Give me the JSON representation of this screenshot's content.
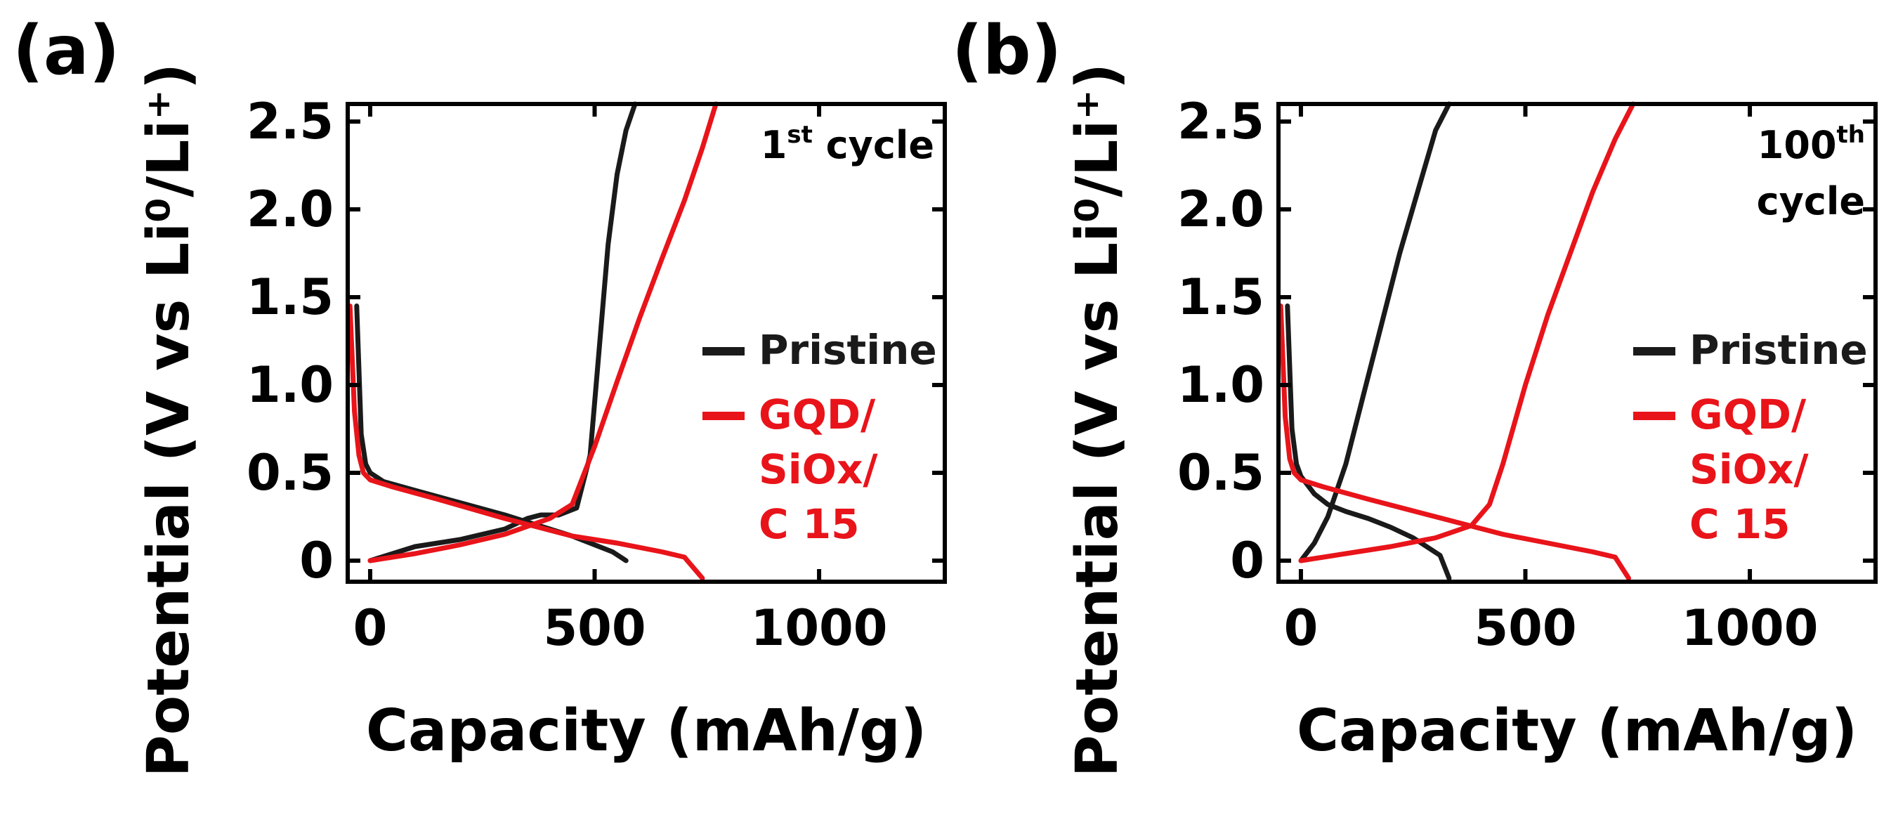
{
  "chart_data": [
    {
      "type": "line",
      "panel_label": "(a)",
      "annotation": {
        "text": "1",
        "superscript": "st",
        "suffix": " cycle"
      },
      "xlabel": "Capacity (mAh/g)",
      "ylabel": "Potential (V vs Li⁰/Li⁺)",
      "xlim": [
        -50,
        1280
      ],
      "ylim": [
        -0.12,
        2.6
      ],
      "xticks": [
        0,
        500,
        1000
      ],
      "xtick_labels": [
        "0",
        "500",
        "1000"
      ],
      "yticks": [
        0,
        0.5,
        1.0,
        1.5,
        2.0,
        2.5
      ],
      "ytick_labels": [
        "0",
        "0.5",
        "1.0",
        "1.5",
        "2.0",
        "2.5"
      ],
      "grid": false,
      "legend": {
        "position": "center-right",
        "entries": [
          {
            "label": "Pristine",
            "color": "#1a1a1a"
          },
          {
            "label": "GQD/\nSiOx/\nC 15",
            "color": "#e8141a"
          }
        ]
      },
      "series": [
        {
          "name": "Pristine discharge",
          "color": "#1a1a1a",
          "x": [
            -30,
            -20,
            -10,
            0,
            30,
            100,
            200,
            300,
            400,
            450,
            500,
            540,
            570
          ],
          "y": [
            1.45,
            0.72,
            0.55,
            0.5,
            0.45,
            0.4,
            0.33,
            0.26,
            0.18,
            0.14,
            0.09,
            0.05,
            0.0
          ]
        },
        {
          "name": "Pristine charge",
          "color": "#1a1a1a",
          "x": [
            0,
            100,
            200,
            300,
            350,
            380,
            420,
            460,
            490,
            510,
            530,
            550,
            570,
            590
          ],
          "y": [
            0.0,
            0.08,
            0.12,
            0.18,
            0.24,
            0.26,
            0.26,
            0.3,
            0.6,
            1.2,
            1.8,
            2.2,
            2.45,
            2.6
          ]
        },
        {
          "name": "GQD/SiOx/C 15 discharge",
          "color": "#e8141a",
          "x": [
            -45,
            -35,
            -25,
            -15,
            0,
            50,
            150,
            300,
            450,
            550,
            650,
            700,
            740
          ],
          "y": [
            1.45,
            0.85,
            0.6,
            0.5,
            0.46,
            0.42,
            0.35,
            0.24,
            0.14,
            0.1,
            0.05,
            0.02,
            -0.1
          ]
        },
        {
          "name": "GQD/SiOx/C 15 charge",
          "color": "#e8141a",
          "x": [
            0,
            100,
            200,
            300,
            400,
            450,
            500,
            550,
            600,
            650,
            700,
            740,
            770
          ],
          "y": [
            0.0,
            0.04,
            0.09,
            0.15,
            0.24,
            0.32,
            0.65,
            1.02,
            1.38,
            1.72,
            2.05,
            2.35,
            2.6
          ]
        }
      ]
    },
    {
      "type": "line",
      "panel_label": "(b)",
      "annotation": {
        "text": "100",
        "superscript": "th",
        "line2": "cycle"
      },
      "xlabel": "Capacity (mAh/g)",
      "ylabel": "Potential (V vs Li⁰/Li⁺)",
      "xlim": [
        -50,
        1280
      ],
      "ylim": [
        -0.12,
        2.6
      ],
      "xticks": [
        0,
        500,
        1000
      ],
      "xtick_labels": [
        "0",
        "500",
        "1000"
      ],
      "yticks": [
        0,
        0.5,
        1.0,
        1.5,
        2.0,
        2.5
      ],
      "ytick_labels": [
        "0",
        "0.5",
        "1.0",
        "1.5",
        "2.0",
        "2.5"
      ],
      "grid": false,
      "legend": {
        "position": "center-right",
        "entries": [
          {
            "label": "Pristine",
            "color": "#1a1a1a"
          },
          {
            "label": "GQD/\nSiOx/\nC 15",
            "color": "#e8141a"
          }
        ]
      },
      "series": [
        {
          "name": "Pristine discharge",
          "color": "#1a1a1a",
          "x": [
            -30,
            -20,
            -10,
            0,
            30,
            60,
            100,
            150,
            200,
            250,
            280,
            310,
            330
          ],
          "y": [
            1.45,
            0.75,
            0.55,
            0.48,
            0.38,
            0.32,
            0.28,
            0.24,
            0.19,
            0.13,
            0.08,
            0.03,
            -0.1
          ]
        },
        {
          "name": "Pristine charge",
          "color": "#1a1a1a",
          "x": [
            0,
            30,
            60,
            100,
            140,
            180,
            220,
            260,
            300,
            330
          ],
          "y": [
            0.0,
            0.1,
            0.25,
            0.55,
            0.95,
            1.35,
            1.75,
            2.1,
            2.45,
            2.6
          ]
        },
        {
          "name": "GQD/SiOx/C 15 discharge",
          "color": "#e8141a",
          "x": [
            -45,
            -35,
            -25,
            -15,
            0,
            50,
            150,
            300,
            450,
            550,
            650,
            700,
            730
          ],
          "y": [
            1.45,
            0.82,
            0.58,
            0.5,
            0.46,
            0.42,
            0.35,
            0.25,
            0.15,
            0.1,
            0.05,
            0.02,
            -0.1
          ]
        },
        {
          "name": "GQD/SiOx/C 15 charge",
          "color": "#e8141a",
          "x": [
            0,
            100,
            200,
            300,
            380,
            420,
            450,
            500,
            550,
            600,
            650,
            700,
            740
          ],
          "y": [
            0.0,
            0.04,
            0.08,
            0.13,
            0.2,
            0.32,
            0.55,
            1.0,
            1.4,
            1.75,
            2.1,
            2.4,
            2.6
          ]
        }
      ]
    }
  ]
}
